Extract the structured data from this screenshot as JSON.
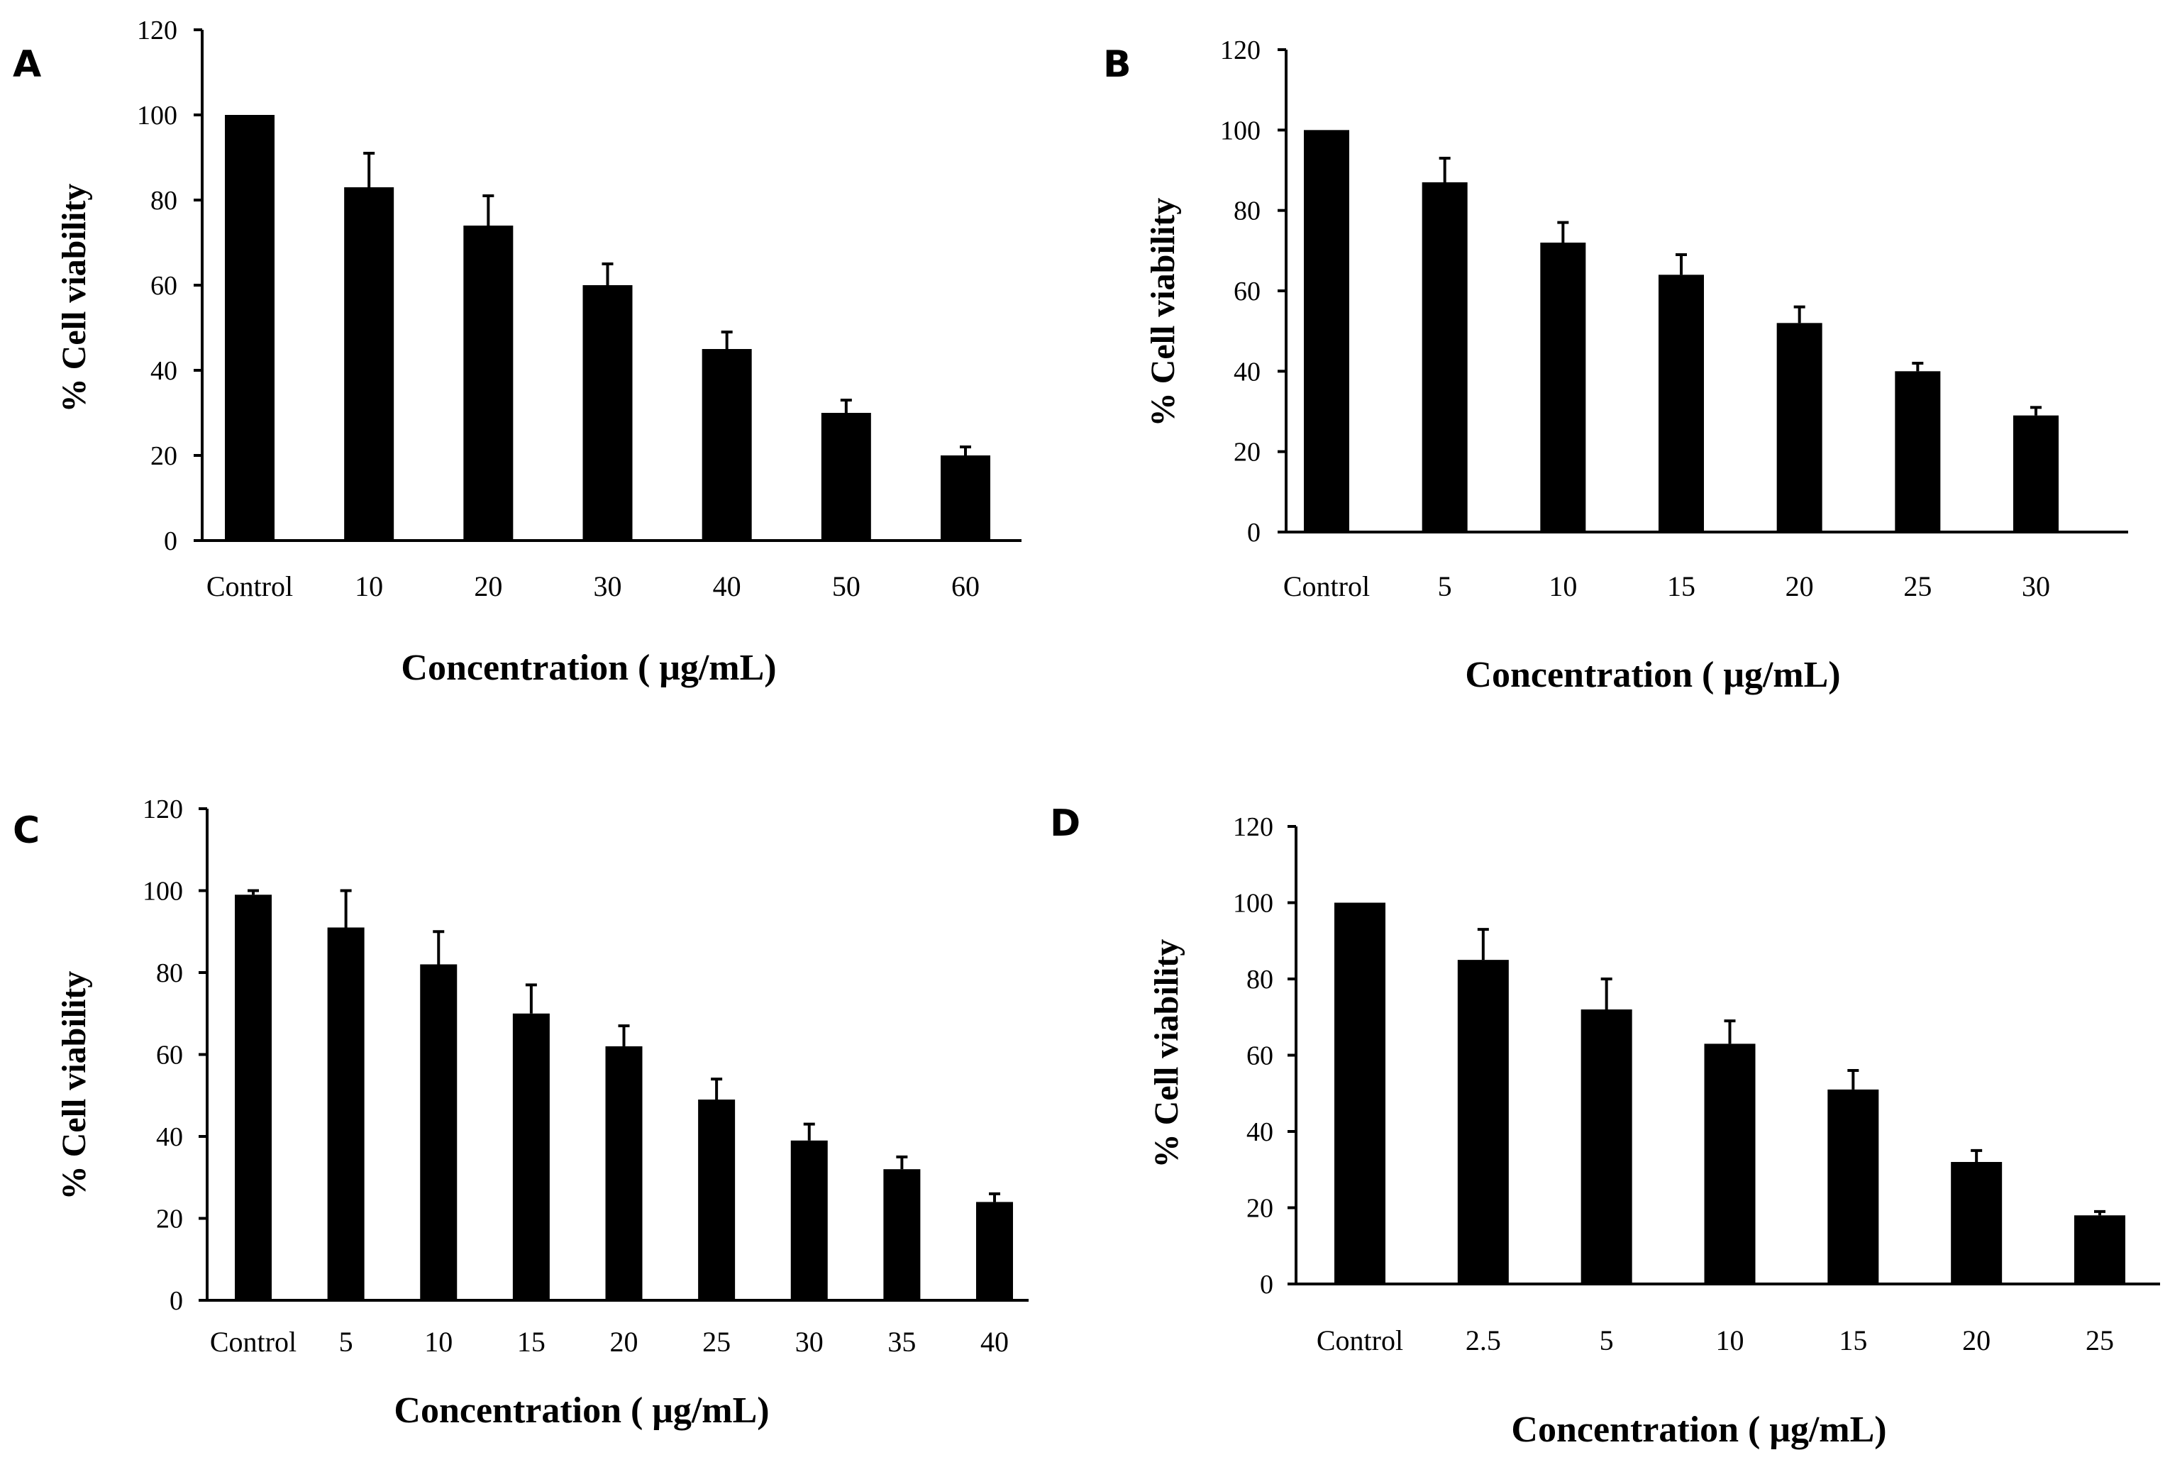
{
  "chart_data": [
    {
      "panel": "A",
      "type": "bar",
      "categories": [
        "Control",
        "10",
        "20",
        "30",
        "40",
        "50",
        "60"
      ],
      "values": [
        100,
        83,
        74,
        60,
        45,
        30,
        20
      ],
      "errors": [
        0,
        8,
        7,
        5,
        4,
        3,
        2
      ],
      "xlabel": "Concentration ( μg/mL)",
      "ylabel": "% Cell viability",
      "ylim": [
        0,
        120
      ],
      "yticks": [
        0,
        20,
        40,
        60,
        80,
        100,
        120
      ],
      "bar_color": "#000000"
    },
    {
      "panel": "B",
      "type": "bar",
      "categories": [
        "Control",
        "5",
        "10",
        "15",
        "20",
        "25",
        "30"
      ],
      "values": [
        100,
        87,
        72,
        64,
        52,
        40,
        29
      ],
      "errors": [
        0,
        6,
        5,
        5,
        4,
        2,
        2
      ],
      "xlabel": "Concentration ( μg/mL)",
      "ylabel": "% Cell viability",
      "ylim": [
        0,
        120
      ],
      "yticks": [
        0,
        20,
        40,
        60,
        80,
        100,
        120
      ],
      "bar_color": "#000000"
    },
    {
      "panel": "C",
      "type": "bar",
      "categories": [
        "Control",
        "5",
        "10",
        "15",
        "20",
        "25",
        "30",
        "35",
        "40"
      ],
      "values": [
        99,
        91,
        82,
        70,
        62,
        49,
        39,
        32,
        24
      ],
      "errors": [
        1,
        9,
        8,
        7,
        5,
        5,
        4,
        3,
        2
      ],
      "xlabel": "Concentration ( μg/mL)",
      "ylabel": "% Cell viability",
      "ylim": [
        0,
        120
      ],
      "yticks": [
        0,
        20,
        40,
        60,
        80,
        100,
        120
      ],
      "bar_color": "#000000"
    },
    {
      "panel": "D",
      "type": "bar",
      "categories": [
        "Control",
        "2.5",
        "5",
        "10",
        "15",
        "20",
        "25"
      ],
      "values": [
        100,
        85,
        72,
        63,
        51,
        32,
        18
      ],
      "errors": [
        0,
        8,
        8,
        6,
        5,
        3,
        1
      ],
      "xlabel": "Concentration ( μg/mL)",
      "ylabel": "% Cell viability",
      "ylim": [
        0,
        120
      ],
      "yticks": [
        0,
        20,
        40,
        60,
        80,
        100,
        120
      ],
      "bar_color": "#000000"
    }
  ]
}
